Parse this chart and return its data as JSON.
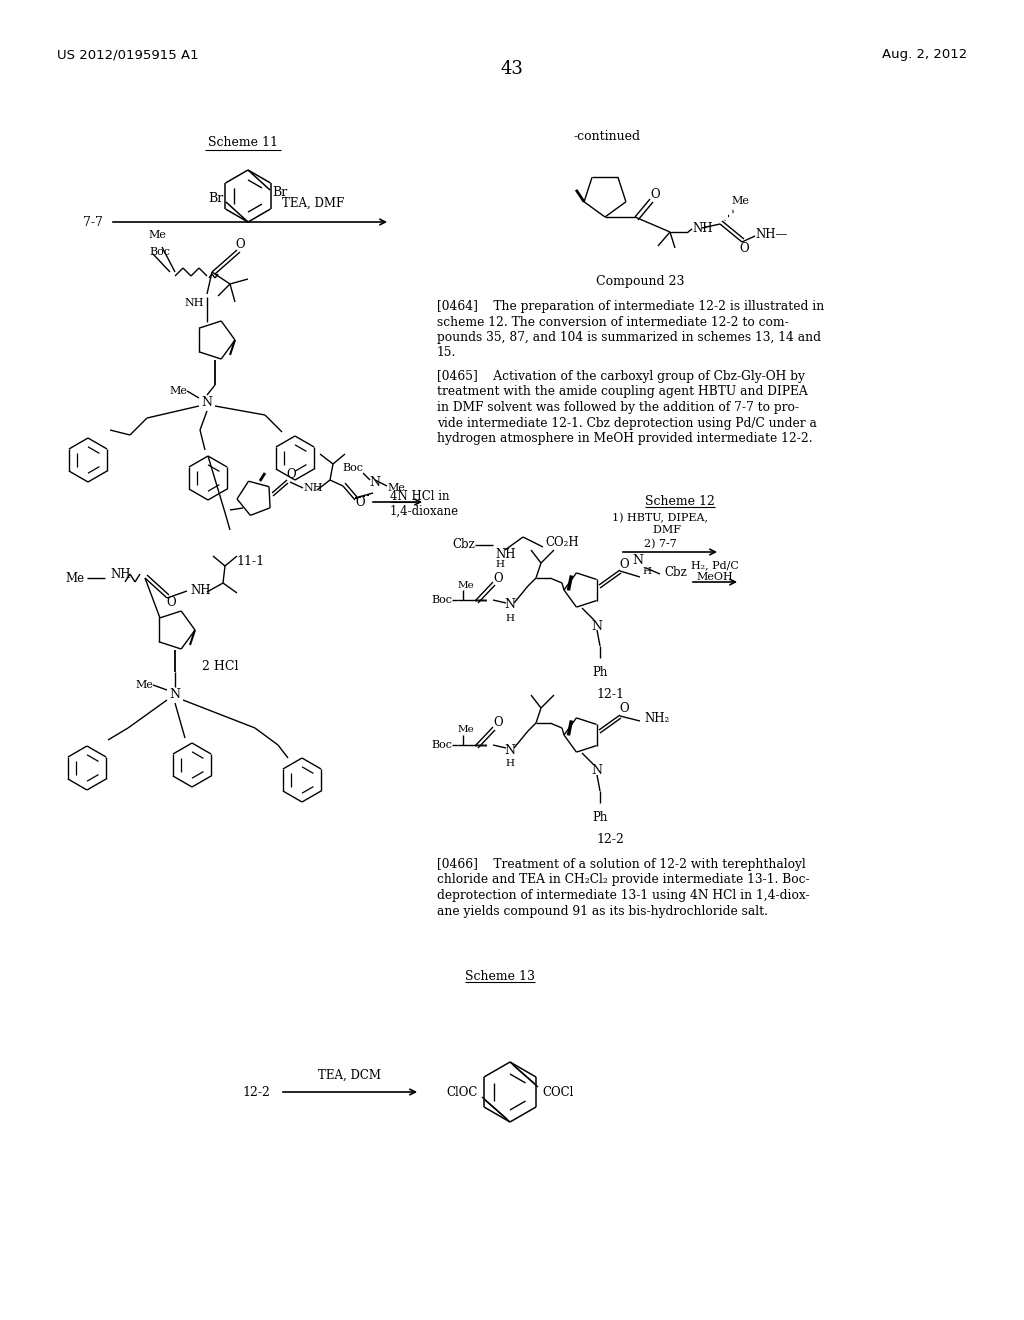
{
  "page_header_left": "US 2012/0195915 A1",
  "page_header_right": "Aug. 2, 2012",
  "page_number": "43",
  "background_color": "#ffffff",
  "scheme11_label": "Scheme 11",
  "scheme12_label": "Scheme 12",
  "scheme13_label": "Scheme 13",
  "label_77": "7-7",
  "label_111": "11-1",
  "label_121": "12-1",
  "label_122": "12-2",
  "label_compound23": "Compound 23",
  "label_continued": "-continued",
  "para0464_lines": [
    "[0464]    The preparation of intermediate 12-2 is illustrated in",
    "scheme 12. The conversion of intermediate 12-2 to com-",
    "pounds 35, 87, and 104 is summarized in schemes 13, 14 and",
    "15."
  ],
  "para0465_lines": [
    "[0465]    Activation of the carboxyl group of Cbz-Gly-OH by",
    "treatment with the amide coupling agent HBTU and DIPEA",
    "in DMF solvent was followed by the addition of 7-7 to pro-",
    "vide intermediate 12-1. Cbz deprotection using Pd/C under a",
    "hydrogen atmosphere in MeOH provided intermediate 12-2."
  ],
  "para0466_lines": [
    "[0466]    Treatment of a solution of 12-2 with terephthaloyl",
    "chloride and TEA in CH₂Cl₂ provide intermediate 13-1. Boc-",
    "deprotection of intermediate 13-1 using 4N HCl in 1,4-diox-",
    "ane yields compound 91 as its bis-hydrochloride salt."
  ]
}
